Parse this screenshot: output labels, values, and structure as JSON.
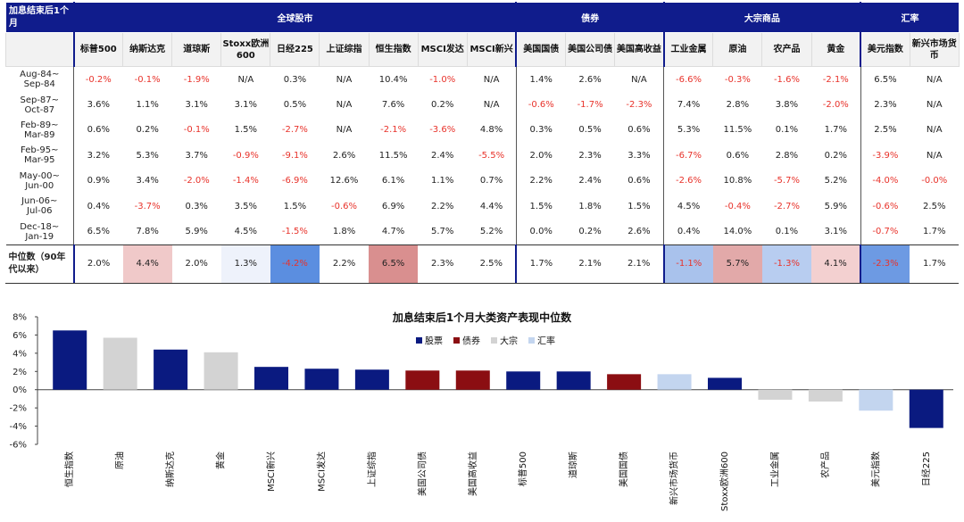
{
  "table": {
    "corner_label": "加息结束后1个月",
    "groups": [
      {
        "label": "全球股市",
        "span": 9
      },
      {
        "label": "债券",
        "span": 3
      },
      {
        "label": "大宗商品",
        "span": 4
      },
      {
        "label": "汇率",
        "span": 2
      }
    ],
    "columns": [
      "标普500",
      "纳斯达克",
      "道琼斯",
      "Stoxx欧洲600",
      "日经225",
      "上证综指",
      "恒生指数",
      "MSCI发达",
      "MSCI新兴",
      "美国国债",
      "美国公司债",
      "美国高收益",
      "工业金属",
      "原油",
      "农产品",
      "黄金",
      "美元指数",
      "新兴市场货币"
    ],
    "rows": [
      {
        "period": [
          "Aug-84~",
          "Sep-84"
        ],
        "values": [
          "-0.2%",
          "-0.1%",
          "-1.9%",
          "N/A",
          "0.3%",
          "N/A",
          "10.4%",
          "-1.0%",
          "N/A",
          "1.4%",
          "2.6%",
          "N/A",
          "-6.6%",
          "-0.3%",
          "-1.6%",
          "-2.1%",
          "6.5%",
          "N/A"
        ]
      },
      {
        "period": [
          "Sep-87~",
          "Oct-87"
        ],
        "values": [
          "3.6%",
          "1.1%",
          "3.1%",
          "3.1%",
          "0.5%",
          "N/A",
          "7.6%",
          "0.2%",
          "N/A",
          "-0.6%",
          "-1.7%",
          "-2.3%",
          "7.4%",
          "2.8%",
          "3.8%",
          "-2.0%",
          "2.3%",
          "N/A"
        ]
      },
      {
        "period": [
          "Feb-89~",
          "Mar-89"
        ],
        "values": [
          "0.6%",
          "0.2%",
          "-0.1%",
          "1.5%",
          "-2.7%",
          "N/A",
          "-2.1%",
          "-3.6%",
          "4.8%",
          "0.3%",
          "0.5%",
          "0.6%",
          "5.3%",
          "11.5%",
          "0.1%",
          "1.7%",
          "2.5%",
          "N/A"
        ]
      },
      {
        "period": [
          "Feb-95~",
          "Mar-95"
        ],
        "values": [
          "3.2%",
          "5.3%",
          "3.7%",
          "-0.9%",
          "-9.1%",
          "2.6%",
          "11.5%",
          "2.4%",
          "-5.5%",
          "2.0%",
          "2.3%",
          "3.3%",
          "-6.7%",
          "0.6%",
          "2.8%",
          "0.2%",
          "-3.9%",
          "N/A"
        ]
      },
      {
        "period": [
          "May-00~",
          "Jun-00"
        ],
        "values": [
          "0.9%",
          "3.4%",
          "-2.0%",
          "-1.4%",
          "-6.9%",
          "12.6%",
          "6.1%",
          "1.1%",
          "0.7%",
          "2.2%",
          "2.4%",
          "0.6%",
          "-2.6%",
          "10.8%",
          "-5.7%",
          "5.2%",
          "-4.0%",
          "-0.0%"
        ]
      },
      {
        "period": [
          "Jun-06~",
          "Jul-06"
        ],
        "values": [
          "0.4%",
          "-3.7%",
          "0.3%",
          "3.5%",
          "1.5%",
          "-0.6%",
          "6.9%",
          "2.2%",
          "4.4%",
          "1.5%",
          "1.8%",
          "1.5%",
          "4.5%",
          "-0.4%",
          "-2.7%",
          "5.9%",
          "-0.6%",
          "2.5%"
        ]
      },
      {
        "period": [
          "Dec-18~",
          "Jan-19"
        ],
        "values": [
          "6.5%",
          "7.8%",
          "5.9%",
          "4.5%",
          "-1.5%",
          "1.8%",
          "4.7%",
          "5.7%",
          "5.2%",
          "0.0%",
          "0.2%",
          "2.6%",
          "0.4%",
          "14.0%",
          "0.1%",
          "3.1%",
          "-0.7%",
          "1.7%"
        ]
      }
    ],
    "median_label": "中位数（90年代以来）",
    "median_values": [
      "2.0%",
      "4.4%",
      "2.0%",
      "1.3%",
      "-4.2%",
      "2.2%",
      "6.5%",
      "2.3%",
      "2.5%",
      "1.7%",
      "2.1%",
      "2.1%",
      "-1.1%",
      "5.7%",
      "-1.3%",
      "4.1%",
      "-2.3%",
      "1.7%"
    ],
    "median_bg": [
      "#ffffff",
      "#f0c9c9",
      "#ffffff",
      "#eef2fb",
      "#5b8ee0",
      "#ffffff",
      "#d98f8f",
      "#ffffff",
      "#ffffff",
      "#ffffff",
      "#ffffff",
      "#ffffff",
      "#a9c2ec",
      "#e2a9a9",
      "#b8cdf0",
      "#f3d0d0",
      "#6d9ae3",
      "#ffffff"
    ],
    "colors": {
      "header": "#101c8c",
      "negative": "#e8332b"
    }
  },
  "chart_data": {
    "type": "bar",
    "title": "加息结束后1个月大类资产表现中位数",
    "categories": [
      "恒生指数",
      "原油",
      "纳斯达克",
      "黄金",
      "MSCI新兴",
      "MSCI发达",
      "上证综指",
      "美国公司债",
      "美国高收益",
      "标普500",
      "道琼斯",
      "美国国债",
      "新兴市场货币",
      "Stoxx欧洲600",
      "工业金属",
      "农产品",
      "美元指数",
      "日经225"
    ],
    "values": [
      6.5,
      5.7,
      4.4,
      4.1,
      2.5,
      2.3,
      2.2,
      2.1,
      2.1,
      2.0,
      2.0,
      1.7,
      1.7,
      1.3,
      -1.1,
      -1.3,
      -2.3,
      -4.2
    ],
    "groups": [
      "股票",
      "大宗",
      "股票",
      "大宗",
      "股票",
      "股票",
      "股票",
      "债券",
      "债券",
      "股票",
      "股票",
      "债券",
      "汇率",
      "股票",
      "大宗",
      "大宗",
      "汇率",
      "股票"
    ],
    "legend": [
      {
        "name": "股票",
        "color": "#0a1a80"
      },
      {
        "name": "债券",
        "color": "#8b0e12"
      },
      {
        "name": "大宗",
        "color": "#d3d3d3"
      },
      {
        "name": "汇率",
        "color": "#c3d5ef"
      }
    ],
    "ylim": [
      -6,
      8
    ],
    "yticks": [
      8,
      6,
      4,
      2,
      0,
      -2,
      -4,
      -6
    ],
    "ytick_labels": [
      "8%",
      "6%",
      "4%",
      "2%",
      "0%",
      "-2%",
      "-4%",
      "-6%"
    ],
    "grid": false,
    "legend_position": "top-center"
  }
}
